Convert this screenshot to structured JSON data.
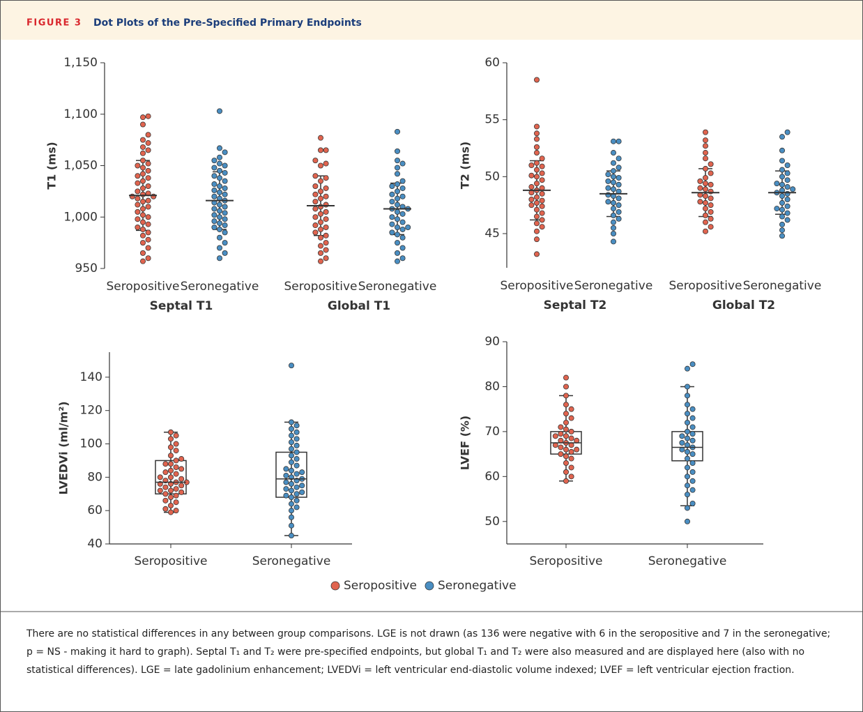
{
  "header": {
    "label": "FIGURE 3",
    "title": "Dot Plots of the Pre-Specified Primary Endpoints"
  },
  "chart_data": [
    {
      "type": "swarm",
      "ylabel": "T1 (ms)",
      "ylim": [
        950,
        1150
      ],
      "yticks": [
        950,
        {
          "value": 1000,
          "label": "1,000"
        },
        {
          "value": 1050,
          "label": "1,050"
        },
        {
          "value": 1100,
          "label": "1,100"
        },
        {
          "value": 1150,
          "label": "1,150"
        }
      ],
      "groups": [
        "Septal T1",
        "Global T1"
      ],
      "series": [
        {
          "name": "Seropositive",
          "color": "#e0644f",
          "values": [
            [
              1098,
              1097,
              1090,
              1080,
              1075,
              1072,
              1068,
              1065,
              1062,
              1055,
              1052,
              1050,
              1048,
              1045,
              1042,
              1040,
              1038,
              1035,
              1033,
              1030,
              1028,
              1025,
              1023,
              1022,
              1020,
              1020,
              1018,
              1016,
              1015,
              1012,
              1010,
              1008,
              1005,
              1002,
              1000,
              998,
              995,
              993,
              990,
              988,
              985,
              982,
              978,
              975,
              970,
              965,
              960,
              957
            ],
            [
              1077,
              1065,
              1065,
              1055,
              1052,
              1050,
              1040,
              1038,
              1035,
              1030,
              1028,
              1025,
              1022,
              1020,
              1018,
              1015,
              1012,
              1010,
              1008,
              1005,
              1003,
              1000,
              998,
              995,
              992,
              990,
              988,
              985,
              982,
              980,
              975,
              972,
              968,
              965,
              960,
              957
            ]
          ],
          "mean": [
            1021,
            1011
          ],
          "sd": [
            34,
            29
          ]
        },
        {
          "name": "Seronegative",
          "color": "#4a8ec2",
          "values": [
            [
              1103,
              1067,
              1063,
              1058,
              1055,
              1052,
              1050,
              1048,
              1045,
              1043,
              1040,
              1038,
              1035,
              1032,
              1030,
              1028,
              1026,
              1024,
              1022,
              1020,
              1018,
              1016,
              1014,
              1012,
              1010,
              1008,
              1006,
              1004,
              1002,
              1000,
              998,
              996,
              994,
              992,
              990,
              988,
              985,
              980,
              975,
              970,
              965,
              960
            ],
            [
              1083,
              1064,
              1055,
              1052,
              1048,
              1042,
              1035,
              1032,
              1030,
              1028,
              1025,
              1022,
              1020,
              1018,
              1015,
              1012,
              1010,
              1008,
              1008,
              1005,
              1003,
              1000,
              998,
              995,
              993,
              990,
              990,
              988,
              985,
              983,
              980,
              975,
              970,
              965,
              960,
              957
            ]
          ],
          "mean": [
            1016,
            1008
          ],
          "sd": [
            28,
            25
          ]
        }
      ]
    },
    {
      "type": "swarm",
      "ylabel": "T2 (ms)",
      "ylim": [
        42,
        60
      ],
      "yticks": [
        45,
        50,
        55,
        60
      ],
      "groups": [
        "Septal T2",
        "Global T2"
      ],
      "series": [
        {
          "name": "Seropositive",
          "color": "#e0644f",
          "values": [
            [
              58.5,
              54.4,
              53.8,
              53.3,
              52.6,
              52.1,
              51.6,
              51.2,
              50.9,
              50.6,
              50.3,
              50.0,
              49.7,
              49.4,
              49.1,
              48.8,
              48.5,
              48.2,
              48.0,
              47.7,
              47.4,
              47.1,
              46.8,
              46.5,
              46.2,
              45.9,
              45.6,
              45.2,
              44.5,
              43.2,
              49.0,
              48.6,
              47.9,
              47.5,
              50.1,
              51.0
            ],
            [
              53.9,
              53.2,
              52.7,
              52.1,
              51.6,
              51.1,
              50.7,
              50.3,
              49.9,
              49.6,
              49.3,
              49.0,
              48.7,
              48.4,
              48.1,
              47.8,
              47.5,
              47.2,
              46.9,
              46.6,
              46.3,
              46.0,
              45.6,
              45.2,
              48.9,
              48.3,
              47.7,
              49.4
            ]
          ],
          "mean": [
            48.8,
            48.6
          ],
          "sd": [
            2.6,
            2.1
          ]
        },
        {
          "name": "Seronegative",
          "color": "#4a8ec2",
          "values": [
            [
              53.1,
              53.1,
              52.1,
              51.6,
              51.2,
              50.8,
              50.5,
              50.2,
              49.9,
              49.6,
              49.3,
              49.0,
              48.7,
              48.4,
              48.1,
              47.8,
              47.5,
              47.2,
              46.9,
              46.6,
              46.3,
              46.0,
              45.5,
              45.0,
              44.3,
              49.5,
              48.9,
              48.3,
              47.7,
              50.0
            ],
            [
              53.9,
              53.5,
              52.3,
              51.4,
              51.0,
              50.6,
              50.3,
              50.0,
              49.7,
              49.4,
              49.1,
              48.8,
              48.6,
              48.3,
              48.0,
              47.7,
              47.4,
              47.1,
              46.8,
              46.5,
              46.2,
              45.8,
              45.3,
              44.8,
              48.9,
              48.5,
              47.2,
              49.3
            ]
          ],
          "mean": [
            48.5,
            48.6
          ],
          "sd": [
            2.0,
            1.9
          ]
        }
      ]
    },
    {
      "type": "swarm",
      "ylabel": "LVEDVi (ml/m²)",
      "ylim": [
        40,
        155
      ],
      "yticks": [
        40,
        60,
        80,
        100,
        120,
        140
      ],
      "series": [
        {
          "name": "Seropositive",
          "color": "#e0644f",
          "values": [
            [
              107,
              105,
              103,
              100,
              98,
              96,
              93,
              91,
              90,
              88,
              86,
              85,
              83,
              82,
              80,
              79,
              78,
              77,
              76,
              76,
              75,
              74,
              73,
              72,
              71,
              70,
              69,
              68,
              66,
              65,
              63,
              61,
              60,
              59,
              80,
              77,
              84,
              72,
              88
            ]
          ],
          "box": [
            {
              "q1": 70,
              "median": 77,
              "q3": 90,
              "whisker_low": 59,
              "whisker_high": 107
            }
          ]
        },
        {
          "name": "Seronegative",
          "color": "#4a8ec2",
          "values": [
            [
              147,
              113,
              111,
              109,
              107,
              105,
              103,
              101,
              99,
              97,
              95,
              93,
              91,
              89,
              87,
              85,
              84,
              83,
              82,
              81,
              80,
              79,
              78,
              77,
              76,
              75,
              74,
              73,
              72,
              71,
              70,
              69,
              68,
              66,
              64,
              62,
              60,
              56,
              51,
              45
            ]
          ],
          "box": [
            {
              "q1": 68,
              "median": 79,
              "q3": 95,
              "whisker_low": 45,
              "whisker_high": 113
            }
          ]
        }
      ]
    },
    {
      "type": "swarm",
      "ylabel": "LVEF (%)",
      "ylim": [
        45,
        90
      ],
      "yticks": [
        50,
        60,
        70,
        80,
        90
      ],
      "series": [
        {
          "name": "Seropositive",
          "color": "#e0644f",
          "values": [
            [
              82,
              80,
              78,
              76,
              75,
              74,
              73,
              72,
              71,
              70.5,
              70,
              69.5,
              69,
              68.5,
              68,
              67.5,
              67,
              66.5,
              66,
              65.5,
              65,
              64.5,
              64,
              63,
              62,
              61,
              60,
              59,
              68,
              67,
              69,
              66
            ]
          ],
          "box": [
            {
              "q1": 65,
              "median": 67.5,
              "q3": 70,
              "whisker_low": 59,
              "whisker_high": 78
            }
          ]
        },
        {
          "name": "Seronegative",
          "color": "#4a8ec2",
          "values": [
            [
              85,
              84,
              80,
              78,
              76,
              75,
              74,
              73,
              72,
              71,
              70,
              69.5,
              69,
              68.5,
              68,
              67.5,
              67,
              66.5,
              66,
              65.5,
              65,
              64,
              63,
              62,
              61,
              60,
              59,
              58,
              57,
              56,
              54,
              53,
              50
            ]
          ],
          "box": [
            {
              "q1": 63.5,
              "median": 66.5,
              "q3": 70,
              "whisker_low": 53.5,
              "whisker_high": 80
            }
          ]
        }
      ]
    }
  ],
  "caption": "There are no statistical differences in any between group comparisons. LGE is not drawn (as 136 were negative with 6 in the seropositive and 7 in the seronegative; p = NS - making it hard to graph). Septal T₁ and T₂ were pre-specified endpoints, but global T₁ and T₂ were also measured and are displayed here (also with no statistical differences). LGE = late gadolinium enhancement; LVEDVi = left ventricular end-diastolic volume indexed; LVEF = left ventricular ejection fraction."
}
